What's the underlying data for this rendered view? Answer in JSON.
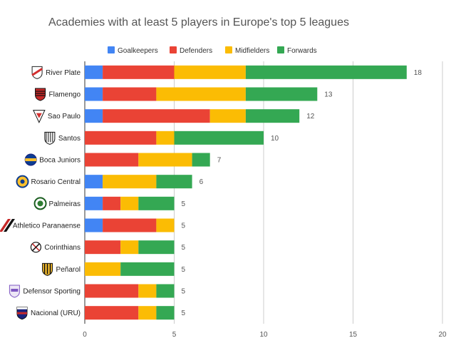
{
  "chart_data": {
    "type": "bar",
    "orientation": "horizontal",
    "stacked": true,
    "title": "Academies with at least 5 players in Europe's top 5 leagues",
    "xlabel": "",
    "ylabel": "",
    "xlim": [
      0,
      20
    ],
    "x_ticks": [
      0,
      5,
      10,
      15,
      20
    ],
    "grid": true,
    "legend_position": "top",
    "categories": [
      "River Plate",
      "Flamengo",
      "Sao Paulo",
      "Santos",
      "Boca Juniors",
      "Rosario Central",
      "Palmeiras",
      "Athletico Paranaense",
      "Corinthians",
      "Peñarol",
      "Defensor Sporting",
      "Nacional (URU)"
    ],
    "series": [
      {
        "name": "Goalkeepers",
        "color": "#4285f4",
        "values": [
          1,
          1,
          1,
          0,
          0,
          1,
          1,
          1,
          0,
          0,
          0,
          0
        ]
      },
      {
        "name": "Defenders",
        "color": "#ea4335",
        "values": [
          4,
          3,
          6,
          4,
          3,
          0,
          1,
          3,
          2,
          0,
          3,
          3
        ]
      },
      {
        "name": "Midfielders",
        "color": "#fbbc04",
        "values": [
          4,
          5,
          2,
          1,
          3,
          3,
          1,
          1,
          1,
          2,
          1,
          1
        ]
      },
      {
        "name": "Forwards",
        "color": "#34a853",
        "values": [
          9,
          4,
          3,
          5,
          1,
          2,
          2,
          0,
          2,
          3,
          1,
          1
        ]
      }
    ],
    "totals": [
      18,
      13,
      12,
      10,
      7,
      6,
      5,
      5,
      5,
      5,
      5,
      5
    ],
    "crest_icons": [
      "river-plate-crest-icon",
      "flamengo-crest-icon",
      "sao-paulo-crest-icon",
      "santos-crest-icon",
      "boca-juniors-crest-icon",
      "rosario-central-crest-icon",
      "palmeiras-crest-icon",
      "athletico-paranaense-crest-icon",
      "corinthians-crest-icon",
      "penarol-crest-icon",
      "defensor-sporting-crest-icon",
      "nacional-uru-crest-icon"
    ]
  }
}
